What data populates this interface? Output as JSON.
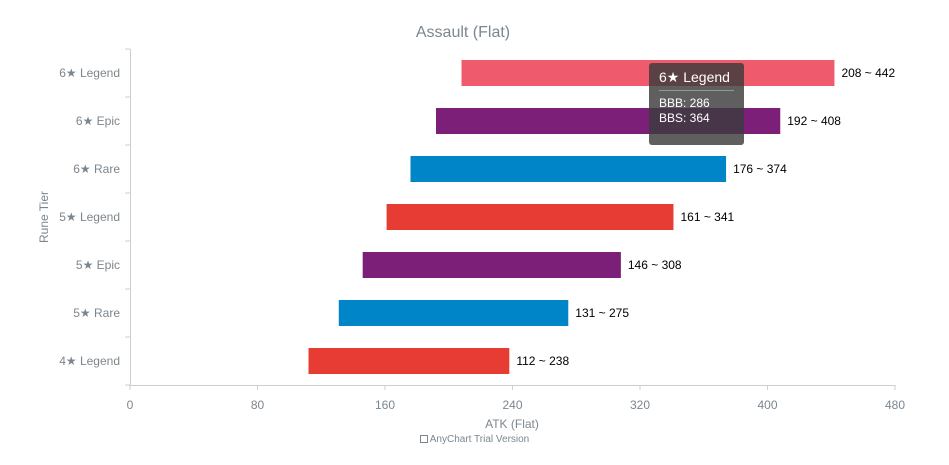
{
  "chart_data": {
    "type": "bar",
    "orientation": "horizontal-range",
    "title": "Assault (Flat)",
    "xlabel": "ATK (Flat)",
    "ylabel": "Rune Tier",
    "xlim": [
      0,
      480
    ],
    "xticks": [
      0,
      80,
      160,
      240,
      320,
      400,
      480
    ],
    "categories": [
      "6★ Legend",
      "6★ Epic",
      "6★ Rare",
      "5★ Legend",
      "5★ Epic",
      "5★ Rare",
      "4★ Legend"
    ],
    "ranges": [
      {
        "low": 208,
        "high": 442,
        "label": "208 ~ 442",
        "color": "#ef5b6c"
      },
      {
        "low": 192,
        "high": 408,
        "label": "192 ~ 408",
        "color": "#7b1f78"
      },
      {
        "low": 176,
        "high": 374,
        "label": "176 ~ 374",
        "color": "#0086c8"
      },
      {
        "low": 161,
        "high": 341,
        "label": "161 ~ 341",
        "color": "#e63c33"
      },
      {
        "low": 146,
        "high": 308,
        "label": "146 ~ 308",
        "color": "#7b1f78"
      },
      {
        "low": 131,
        "high": 275,
        "label": "131 ~ 275",
        "color": "#0086c8"
      },
      {
        "low": 112,
        "high": 238,
        "label": "112 ~ 238",
        "color": "#e63c33"
      }
    ],
    "grid": false,
    "legend": "none"
  },
  "tooltip": {
    "title": "6★ Legend",
    "line1": "BBB: 286",
    "line2": "BBS: 364"
  },
  "credit": "AnyChart Trial Version"
}
